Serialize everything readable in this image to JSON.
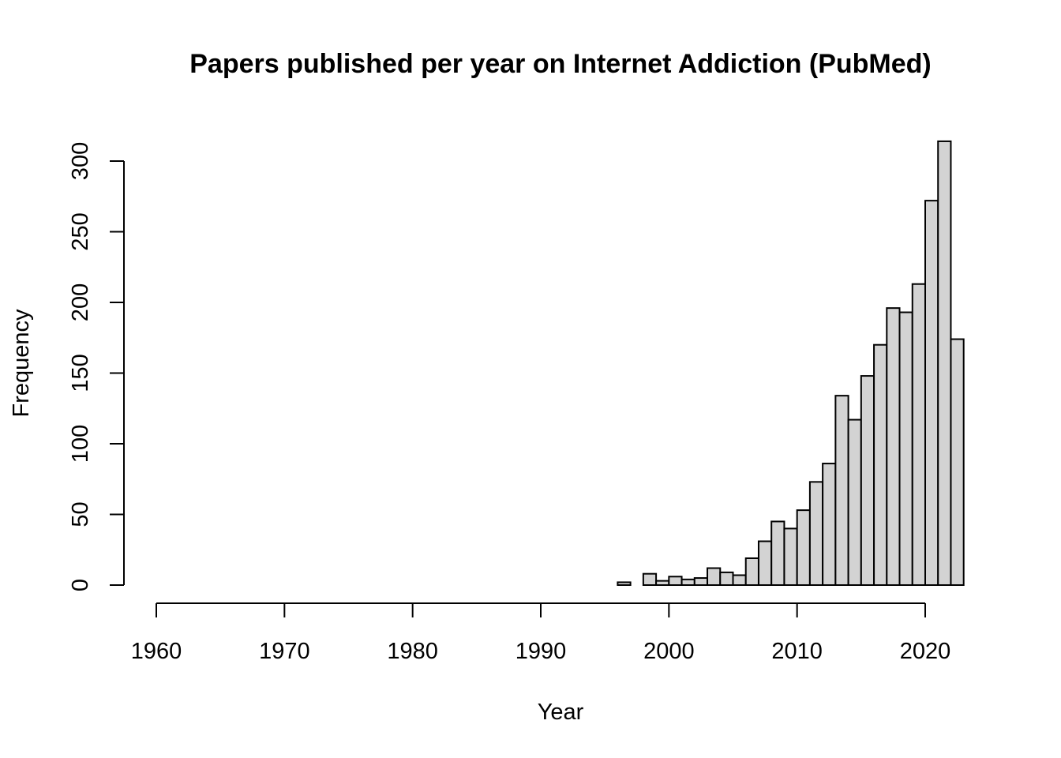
{
  "chart_data": {
    "type": "bar",
    "title": "Papers published per year on Internet Addiction (PubMed)",
    "xlabel": "Year",
    "ylabel": "Frequency",
    "x_ticks": [
      1960,
      1970,
      1980,
      1990,
      2000,
      2010,
      2020
    ],
    "y_ticks": [
      0,
      50,
      100,
      150,
      200,
      250,
      300
    ],
    "xlim": [
      1960,
      2023
    ],
    "ylim": [
      0,
      315
    ],
    "bar_color": "#d3d3d3",
    "bar_edge_color": "#000000",
    "bins": [
      {
        "start": 1996,
        "end": 1997,
        "value": 2
      },
      {
        "start": 1997,
        "end": 1998,
        "value": 0
      },
      {
        "start": 1998,
        "end": 1999,
        "value": 8
      },
      {
        "start": 1999,
        "end": 2000,
        "value": 3
      },
      {
        "start": 2000,
        "end": 2001,
        "value": 6
      },
      {
        "start": 2001,
        "end": 2002,
        "value": 4
      },
      {
        "start": 2002,
        "end": 2003,
        "value": 5
      },
      {
        "start": 2003,
        "end": 2004,
        "value": 12
      },
      {
        "start": 2004,
        "end": 2005,
        "value": 9
      },
      {
        "start": 2005,
        "end": 2006,
        "value": 7
      },
      {
        "start": 2006,
        "end": 2007,
        "value": 19
      },
      {
        "start": 2007,
        "end": 2008,
        "value": 31
      },
      {
        "start": 2008,
        "end": 2009,
        "value": 45
      },
      {
        "start": 2009,
        "end": 2010,
        "value": 40
      },
      {
        "start": 2010,
        "end": 2011,
        "value": 53
      },
      {
        "start": 2011,
        "end": 2012,
        "value": 73
      },
      {
        "start": 2012,
        "end": 2013,
        "value": 86
      },
      {
        "start": 2013,
        "end": 2014,
        "value": 134
      },
      {
        "start": 2014,
        "end": 2015,
        "value": 117
      },
      {
        "start": 2015,
        "end": 2016,
        "value": 148
      },
      {
        "start": 2016,
        "end": 2017,
        "value": 170
      },
      {
        "start": 2017,
        "end": 2018,
        "value": 196
      },
      {
        "start": 2018,
        "end": 2019,
        "value": 193
      },
      {
        "start": 2019,
        "end": 2020,
        "value": 213
      },
      {
        "start": 2020,
        "end": 2021,
        "value": 272
      },
      {
        "start": 2021,
        "end": 2022,
        "value": 314
      },
      {
        "start": 2022,
        "end": 2023,
        "value": 174
      }
    ]
  }
}
